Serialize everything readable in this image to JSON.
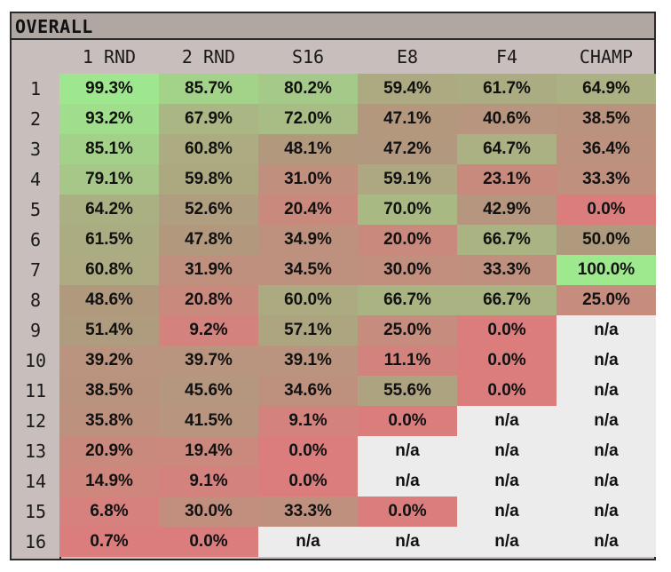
{
  "title": "OVERALL",
  "chart_data": {
    "type": "table",
    "title": "OVERALL",
    "columns": [
      "1 RND",
      "2 RND",
      "S16",
      "E8",
      "F4",
      "CHAMP"
    ],
    "rows": [
      {
        "seed": "1",
        "values": [
          "99.3%",
          "85.7%",
          "80.2%",
          "59.4%",
          "61.7%",
          "64.9%"
        ]
      },
      {
        "seed": "2",
        "values": [
          "93.2%",
          "67.9%",
          "72.0%",
          "47.1%",
          "40.6%",
          "38.5%"
        ]
      },
      {
        "seed": "3",
        "values": [
          "85.1%",
          "60.8%",
          "48.1%",
          "47.2%",
          "64.7%",
          "36.4%"
        ]
      },
      {
        "seed": "4",
        "values": [
          "79.1%",
          "59.8%",
          "31.0%",
          "59.1%",
          "23.1%",
          "33.3%"
        ]
      },
      {
        "seed": "5",
        "values": [
          "64.2%",
          "52.6%",
          "20.4%",
          "70.0%",
          "42.9%",
          "0.0%"
        ]
      },
      {
        "seed": "6",
        "values": [
          "61.5%",
          "47.8%",
          "34.9%",
          "20.0%",
          "66.7%",
          "50.0%"
        ]
      },
      {
        "seed": "7",
        "values": [
          "60.8%",
          "31.9%",
          "34.5%",
          "30.0%",
          "33.3%",
          "100.0%"
        ]
      },
      {
        "seed": "8",
        "values": [
          "48.6%",
          "20.8%",
          "60.0%",
          "66.7%",
          "66.7%",
          "25.0%"
        ]
      },
      {
        "seed": "9",
        "values": [
          "51.4%",
          "9.2%",
          "57.1%",
          "25.0%",
          "0.0%",
          "n/a"
        ]
      },
      {
        "seed": "10",
        "values": [
          "39.2%",
          "39.7%",
          "39.1%",
          "11.1%",
          "0.0%",
          "n/a"
        ]
      },
      {
        "seed": "11",
        "values": [
          "38.5%",
          "45.6%",
          "34.6%",
          "55.6%",
          "0.0%",
          "n/a"
        ]
      },
      {
        "seed": "12",
        "values": [
          "35.8%",
          "41.5%",
          "9.1%",
          "0.0%",
          "n/a",
          "n/a"
        ]
      },
      {
        "seed": "13",
        "values": [
          "20.9%",
          "19.4%",
          "0.0%",
          "n/a",
          "n/a",
          "n/a"
        ]
      },
      {
        "seed": "14",
        "values": [
          "14.9%",
          "9.1%",
          "0.0%",
          "n/a",
          "n/a",
          "n/a"
        ]
      },
      {
        "seed": "15",
        "values": [
          "6.8%",
          "30.0%",
          "33.3%",
          "0.0%",
          "n/a",
          "n/a"
        ]
      },
      {
        "seed": "16",
        "values": [
          "0.7%",
          "0.0%",
          "n/a",
          "n/a",
          "n/a",
          "n/a"
        ]
      }
    ],
    "colors": {
      "high": "#9ee88e",
      "mid": "#b09a7e",
      "low": "#dc7d7d",
      "na": "#ececec",
      "header": "#c8bebb",
      "title_bar": "#b0a6a2"
    }
  }
}
